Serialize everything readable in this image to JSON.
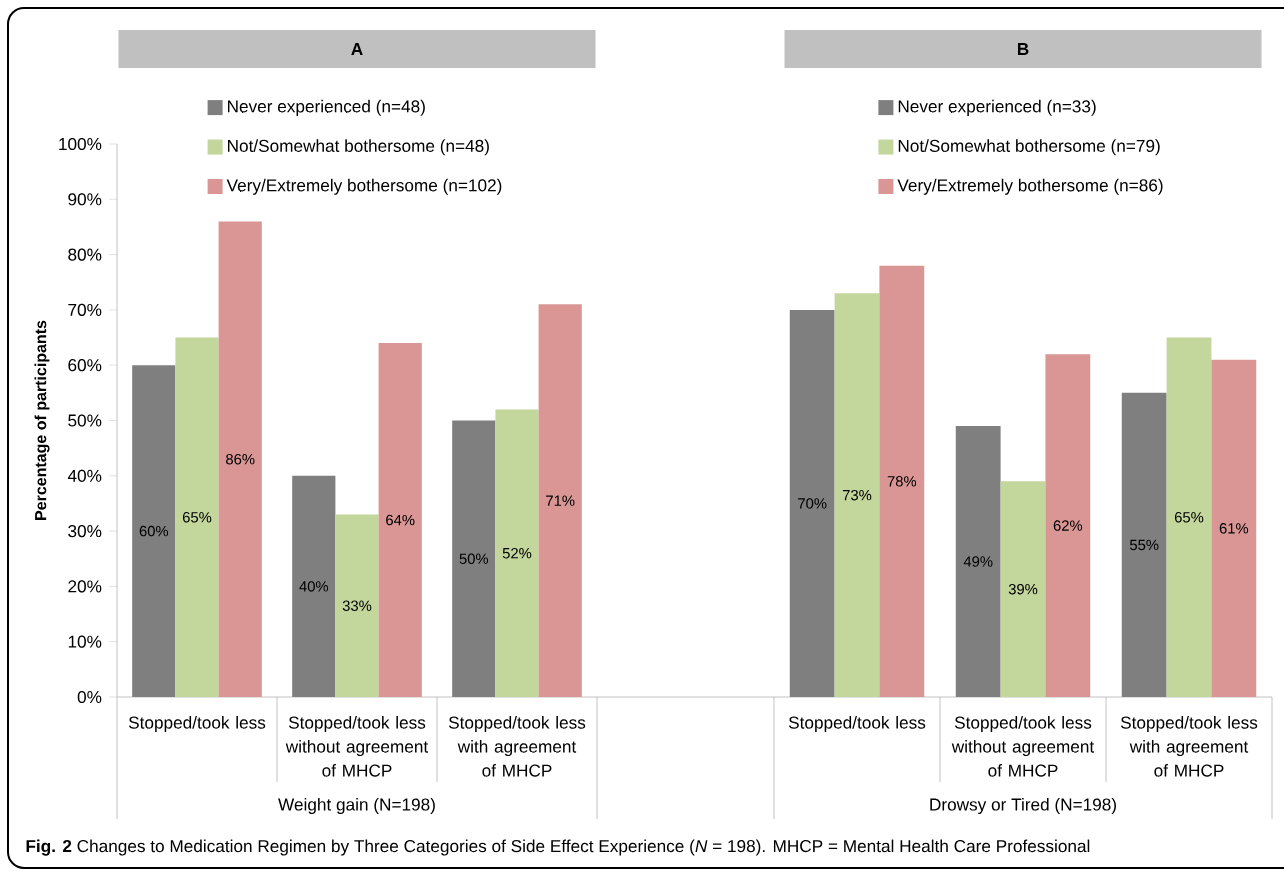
{
  "chart_data": [
    {
      "type": "bar",
      "title": "A",
      "xlabel": "Weight gain (N=198)",
      "ylabel": "Percentage of participants",
      "categories": [
        "Stopped/took less",
        "Stopped/took less without agreement of MHCP",
        "Stopped/took less with agreement of MHCP"
      ],
      "series": [
        {
          "name": "Never experienced (n=48)",
          "color": "#7f7f7f",
          "values": [
            60,
            40,
            50
          ],
          "value_labels": [
            "60%",
            "40%",
            "50%"
          ]
        },
        {
          "name": "Not/Somewhat bothersome (n=48)",
          "color": "#c3d69b",
          "values": [
            65,
            33,
            52
          ],
          "value_labels": [
            "65%",
            "33%",
            "52%"
          ]
        },
        {
          "name": "Very/Extremely bothersome (n=102)",
          "color": "#d99694",
          "values": [
            86,
            64,
            71
          ],
          "value_labels": [
            "86%",
            "64%",
            "71%"
          ]
        }
      ],
      "ylim": [
        0,
        100
      ],
      "yticks": [
        {
          "value": 0,
          "label": "0%"
        },
        {
          "value": 10,
          "label": "10%"
        },
        {
          "value": 20,
          "label": "20%"
        },
        {
          "value": 30,
          "label": "30%"
        },
        {
          "value": 40,
          "label": "40%"
        },
        {
          "value": 50,
          "label": "50%"
        },
        {
          "value": 60,
          "label": "60%"
        },
        {
          "value": 70,
          "label": "70%"
        },
        {
          "value": 80,
          "label": "80%"
        },
        {
          "value": 90,
          "label": "90%"
        },
        {
          "value": 100,
          "label": "100%"
        }
      ],
      "legend": "top",
      "annotations": [
        "**Fig. 2** Changes to Medication Regimen by Three Categories of Side Effect Experience (*N* = 198). MHCP = Mental Health Care Professional"
      ]
    },
    {
      "type": "bar",
      "title": "B",
      "xlabel": "Drowsy or Tired (N=198)",
      "categories": [
        "Stopped/took less",
        "Stopped/took less without agreement of MHCP",
        "Stopped/took less with agreement of MHCP"
      ],
      "series": [
        {
          "name": "Never experienced (n=33)",
          "color": "#7f7f7f",
          "values": [
            70,
            49,
            55
          ],
          "value_labels": [
            "70%",
            "49%",
            "55%"
          ]
        },
        {
          "name": "Not/Somewhat bothersome (n=79)",
          "color": "#c3d69b",
          "values": [
            73,
            39,
            65
          ],
          "value_labels": [
            "73%",
            "39%",
            "65%"
          ]
        },
        {
          "name": "Very/Extremely bothersome (n=86)",
          "color": "#d99694",
          "values": [
            78,
            62,
            61
          ],
          "value_labels": [
            "78%",
            "62%",
            "61%"
          ]
        }
      ],
      "ylim": [
        0,
        100
      ],
      "legend": "top",
      "tick_labels": "x"
    }
  ]
}
